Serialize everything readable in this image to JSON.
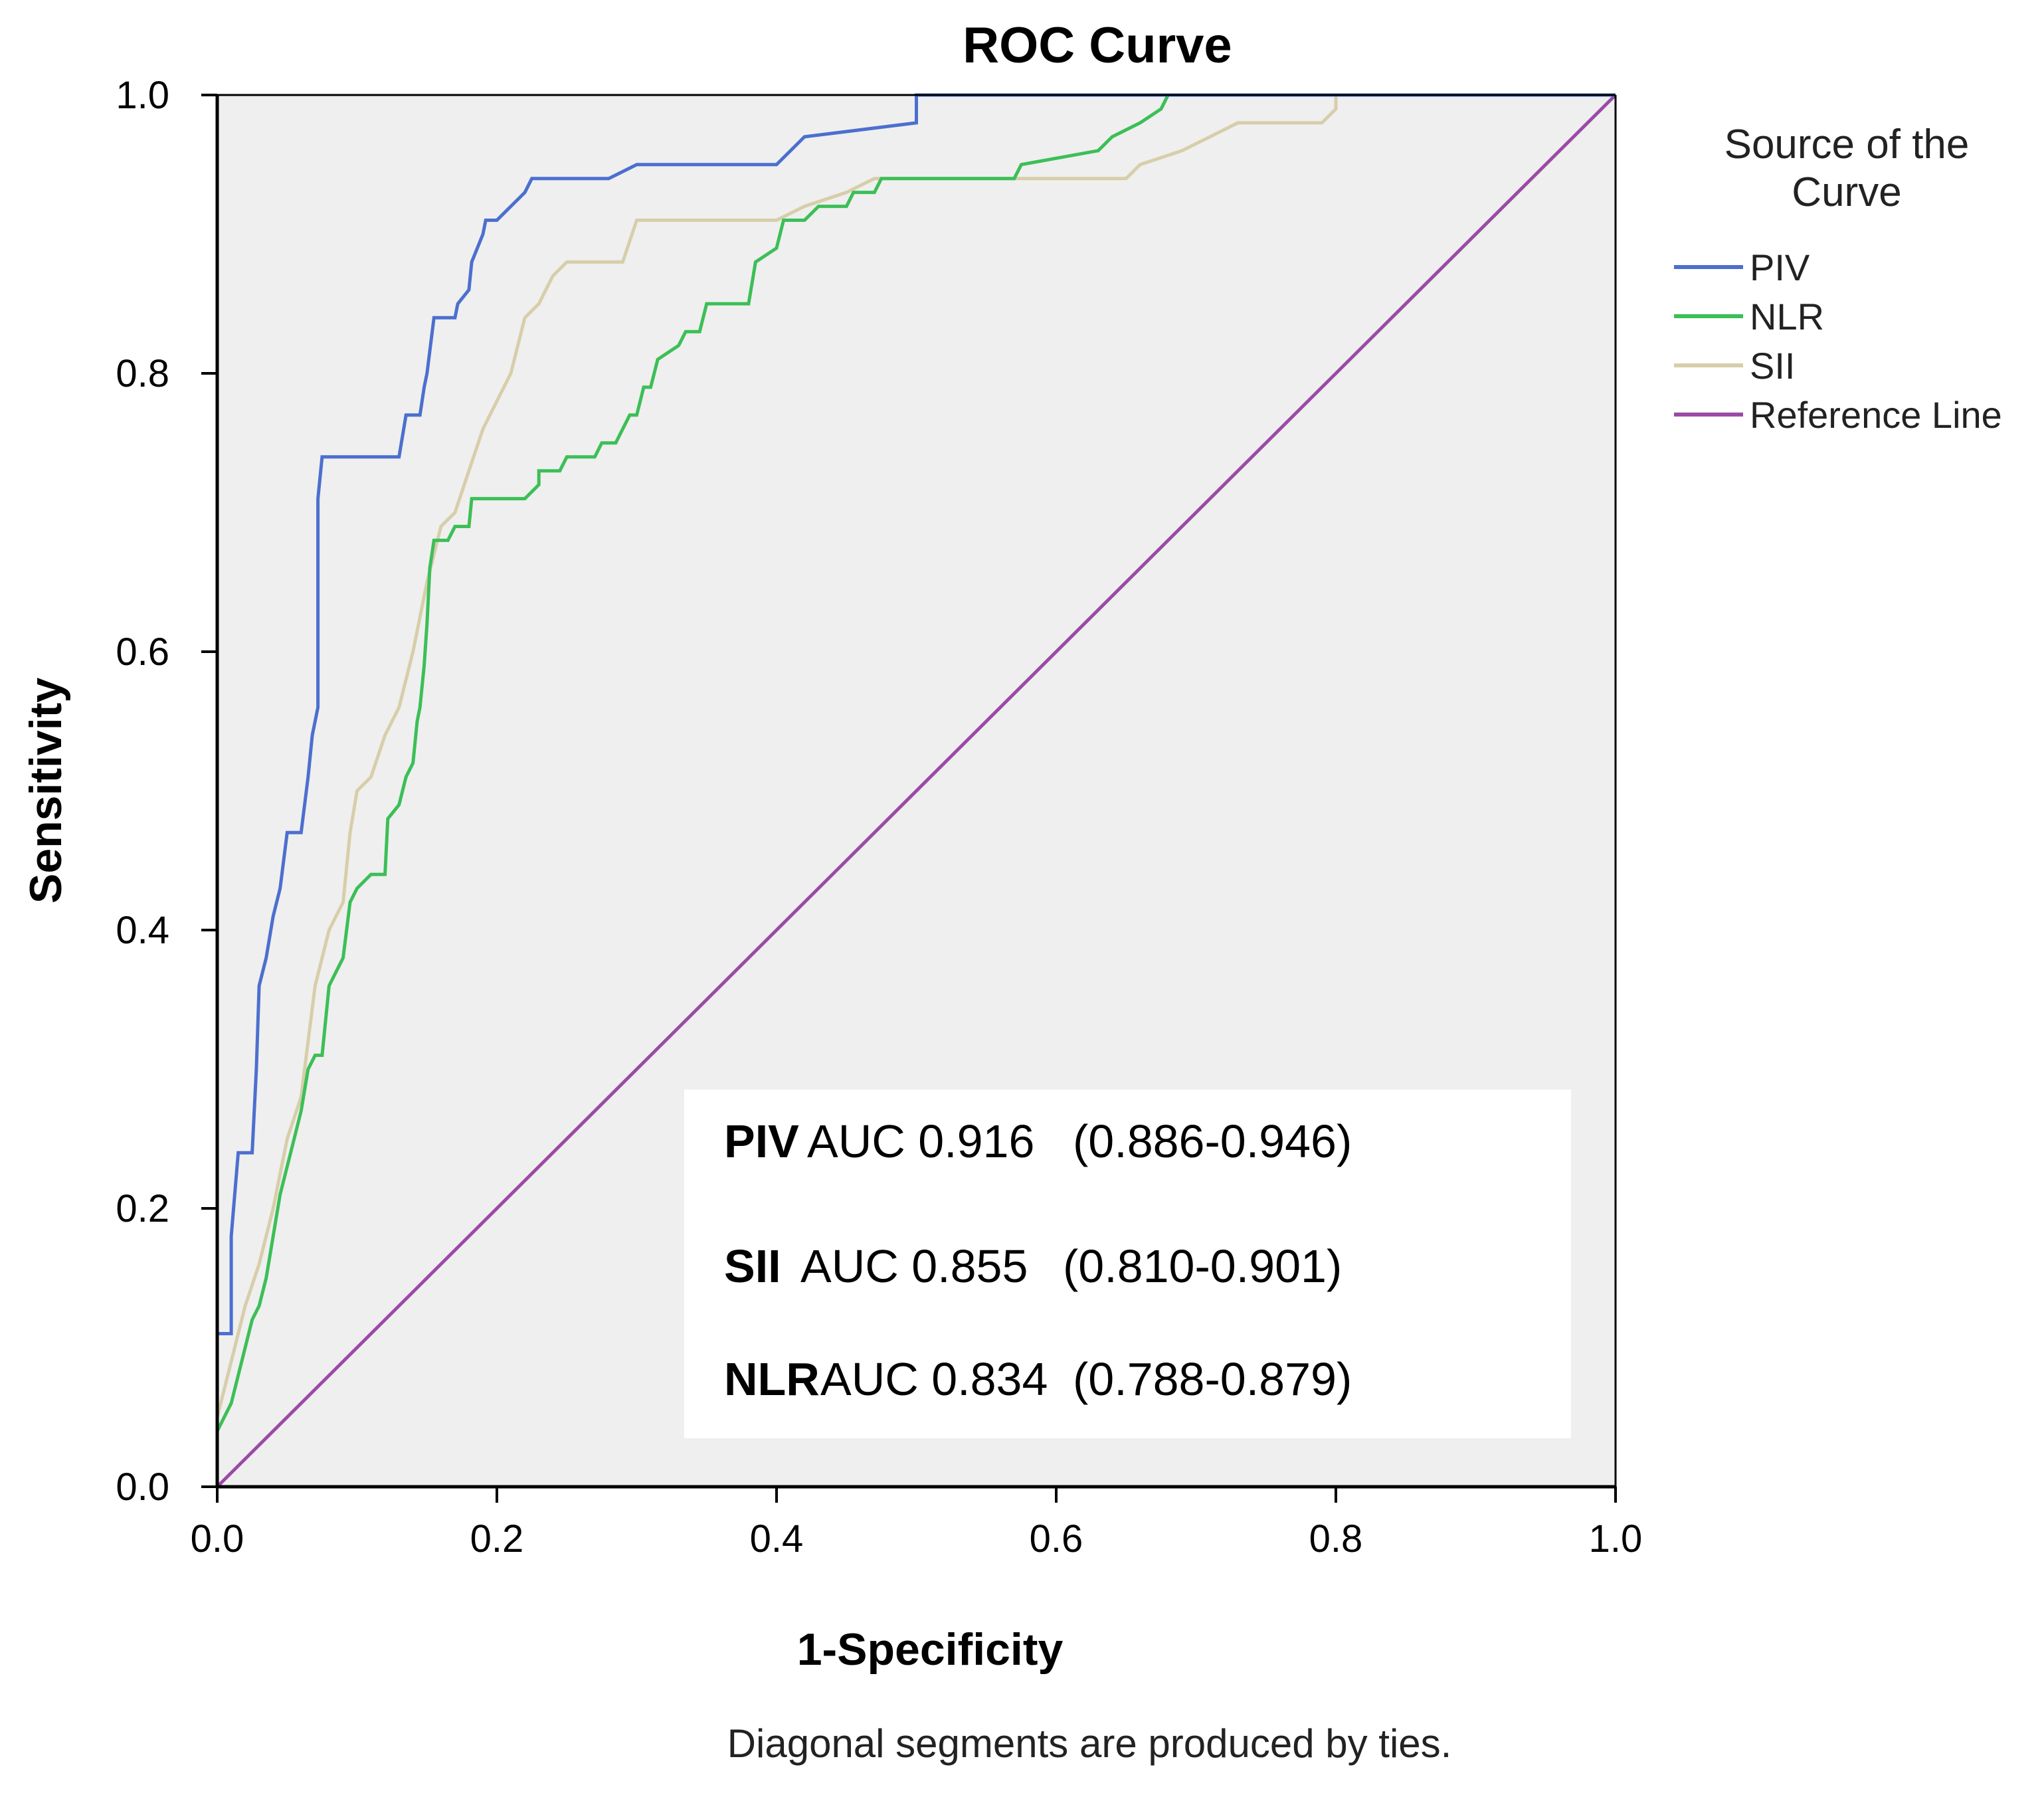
{
  "chart_data": {
    "type": "line",
    "title": "ROC Curve",
    "xlabel": "1-Specificity",
    "ylabel": "Sensitivity",
    "xlim": [
      0,
      1
    ],
    "ylim": [
      0,
      1
    ],
    "xticks": [
      "0.0",
      "0.2",
      "0.4",
      "0.6",
      "0.8",
      "1.0"
    ],
    "yticks": [
      "0.0",
      "0.2",
      "0.4",
      "0.6",
      "0.8",
      "1.0"
    ],
    "grid": false,
    "footnote": "Diagonal segments are produced by ties.",
    "legend": {
      "title_line1": "Source of the",
      "title_line2": "Curve",
      "position": "right-top"
    },
    "series": [
      {
        "name": "PIV",
        "color": "#4c6fcf",
        "points": [
          [
            0,
            0
          ],
          [
            0,
            0.11
          ],
          [
            0.01,
            0.11
          ],
          [
            0.01,
            0.18
          ],
          [
            0.015,
            0.24
          ],
          [
            0.025,
            0.24
          ],
          [
            0.028,
            0.3
          ],
          [
            0.03,
            0.36
          ],
          [
            0.035,
            0.38
          ],
          [
            0.04,
            0.41
          ],
          [
            0.045,
            0.43
          ],
          [
            0.05,
            0.47
          ],
          [
            0.06,
            0.47
          ],
          [
            0.065,
            0.51
          ],
          [
            0.068,
            0.54
          ],
          [
            0.072,
            0.56
          ],
          [
            0.072,
            0.71
          ],
          [
            0.075,
            0.74
          ],
          [
            0.13,
            0.74
          ],
          [
            0.135,
            0.77
          ],
          [
            0.145,
            0.77
          ],
          [
            0.148,
            0.79
          ],
          [
            0.15,
            0.8
          ],
          [
            0.155,
            0.84
          ],
          [
            0.17,
            0.84
          ],
          [
            0.172,
            0.85
          ],
          [
            0.18,
            0.86
          ],
          [
            0.182,
            0.88
          ],
          [
            0.19,
            0.9
          ],
          [
            0.192,
            0.91
          ],
          [
            0.2,
            0.91
          ],
          [
            0.21,
            0.92
          ],
          [
            0.22,
            0.93
          ],
          [
            0.225,
            0.94
          ],
          [
            0.28,
            0.94
          ],
          [
            0.3,
            0.95
          ],
          [
            0.4,
            0.95
          ],
          [
            0.42,
            0.97
          ],
          [
            0.5,
            0.98
          ],
          [
            0.5,
            1.0
          ],
          [
            1,
            1
          ]
        ]
      },
      {
        "name": "NLR",
        "color": "#3cbf57",
        "points": [
          [
            0,
            0
          ],
          [
            0,
            0.04
          ],
          [
            0.01,
            0.06
          ],
          [
            0.02,
            0.1
          ],
          [
            0.025,
            0.12
          ],
          [
            0.03,
            0.13
          ],
          [
            0.035,
            0.15
          ],
          [
            0.04,
            0.18
          ],
          [
            0.045,
            0.21
          ],
          [
            0.055,
            0.25
          ],
          [
            0.06,
            0.27
          ],
          [
            0.065,
            0.3
          ],
          [
            0.07,
            0.31
          ],
          [
            0.075,
            0.31
          ],
          [
            0.08,
            0.36
          ],
          [
            0.09,
            0.38
          ],
          [
            0.095,
            0.42
          ],
          [
            0.1,
            0.43
          ],
          [
            0.11,
            0.44
          ],
          [
            0.12,
            0.44
          ],
          [
            0.122,
            0.48
          ],
          [
            0.13,
            0.49
          ],
          [
            0.135,
            0.51
          ],
          [
            0.14,
            0.52
          ],
          [
            0.143,
            0.55
          ],
          [
            0.145,
            0.56
          ],
          [
            0.148,
            0.59
          ],
          [
            0.15,
            0.62
          ],
          [
            0.152,
            0.66
          ],
          [
            0.155,
            0.68
          ],
          [
            0.165,
            0.68
          ],
          [
            0.17,
            0.69
          ],
          [
            0.18,
            0.69
          ],
          [
            0.182,
            0.71
          ],
          [
            0.22,
            0.71
          ],
          [
            0.23,
            0.72
          ],
          [
            0.23,
            0.73
          ],
          [
            0.245,
            0.73
          ],
          [
            0.25,
            0.74
          ],
          [
            0.27,
            0.74
          ],
          [
            0.275,
            0.75
          ],
          [
            0.285,
            0.75
          ],
          [
            0.29,
            0.76
          ],
          [
            0.295,
            0.77
          ],
          [
            0.3,
            0.77
          ],
          [
            0.305,
            0.79
          ],
          [
            0.31,
            0.79
          ],
          [
            0.315,
            0.81
          ],
          [
            0.33,
            0.82
          ],
          [
            0.335,
            0.83
          ],
          [
            0.345,
            0.83
          ],
          [
            0.35,
            0.85
          ],
          [
            0.38,
            0.85
          ],
          [
            0.385,
            0.88
          ],
          [
            0.4,
            0.89
          ],
          [
            0.405,
            0.91
          ],
          [
            0.42,
            0.91
          ],
          [
            0.43,
            0.92
          ],
          [
            0.45,
            0.92
          ],
          [
            0.455,
            0.93
          ],
          [
            0.47,
            0.93
          ],
          [
            0.475,
            0.94
          ],
          [
            0.57,
            0.94
          ],
          [
            0.575,
            0.95
          ],
          [
            0.63,
            0.96
          ],
          [
            0.64,
            0.97
          ],
          [
            0.66,
            0.98
          ],
          [
            0.675,
            0.99
          ],
          [
            0.68,
            1.0
          ],
          [
            1,
            1
          ]
        ]
      },
      {
        "name": "SII",
        "color": "#d7ceaa",
        "points": [
          [
            0,
            0
          ],
          [
            0,
            0.05
          ],
          [
            0.01,
            0.09
          ],
          [
            0.02,
            0.13
          ],
          [
            0.03,
            0.16
          ],
          [
            0.04,
            0.2
          ],
          [
            0.05,
            0.25
          ],
          [
            0.06,
            0.28
          ],
          [
            0.065,
            0.32
          ],
          [
            0.07,
            0.36
          ],
          [
            0.08,
            0.4
          ],
          [
            0.09,
            0.42
          ],
          [
            0.095,
            0.47
          ],
          [
            0.1,
            0.5
          ],
          [
            0.11,
            0.51
          ],
          [
            0.12,
            0.54
          ],
          [
            0.13,
            0.56
          ],
          [
            0.14,
            0.6
          ],
          [
            0.15,
            0.65
          ],
          [
            0.16,
            0.69
          ],
          [
            0.17,
            0.7
          ],
          [
            0.18,
            0.73
          ],
          [
            0.19,
            0.76
          ],
          [
            0.2,
            0.78
          ],
          [
            0.21,
            0.8
          ],
          [
            0.22,
            0.84
          ],
          [
            0.23,
            0.85
          ],
          [
            0.24,
            0.87
          ],
          [
            0.25,
            0.88
          ],
          [
            0.29,
            0.88
          ],
          [
            0.3,
            0.91
          ],
          [
            0.4,
            0.91
          ],
          [
            0.42,
            0.92
          ],
          [
            0.45,
            0.93
          ],
          [
            0.47,
            0.94
          ],
          [
            0.65,
            0.94
          ],
          [
            0.66,
            0.95
          ],
          [
            0.69,
            0.96
          ],
          [
            0.71,
            0.97
          ],
          [
            0.73,
            0.98
          ],
          [
            0.79,
            0.98
          ],
          [
            0.8,
            0.99
          ],
          [
            0.8,
            1.0
          ],
          [
            1,
            1
          ]
        ]
      },
      {
        "name": "Reference Line",
        "color": "#9a4ba5",
        "points": [
          [
            0,
            0
          ],
          [
            1,
            1
          ]
        ]
      }
    ],
    "auc_table": [
      {
        "label": "PIV",
        "auc_text": "AUC 0.916",
        "ci_text": "(0.886-0.946)"
      },
      {
        "label": "SII",
        "auc_text": "AUC 0.855",
        "ci_text": "(0.810-0.901)"
      },
      {
        "label": "NLR",
        "auc_text": "AUC 0.834",
        "ci_text": "(0.788-0.879)"
      }
    ]
  },
  "colors": {
    "plot_background": "#efefef",
    "axis": "#000000",
    "text": "#000000",
    "legend_title": "#222222"
  }
}
